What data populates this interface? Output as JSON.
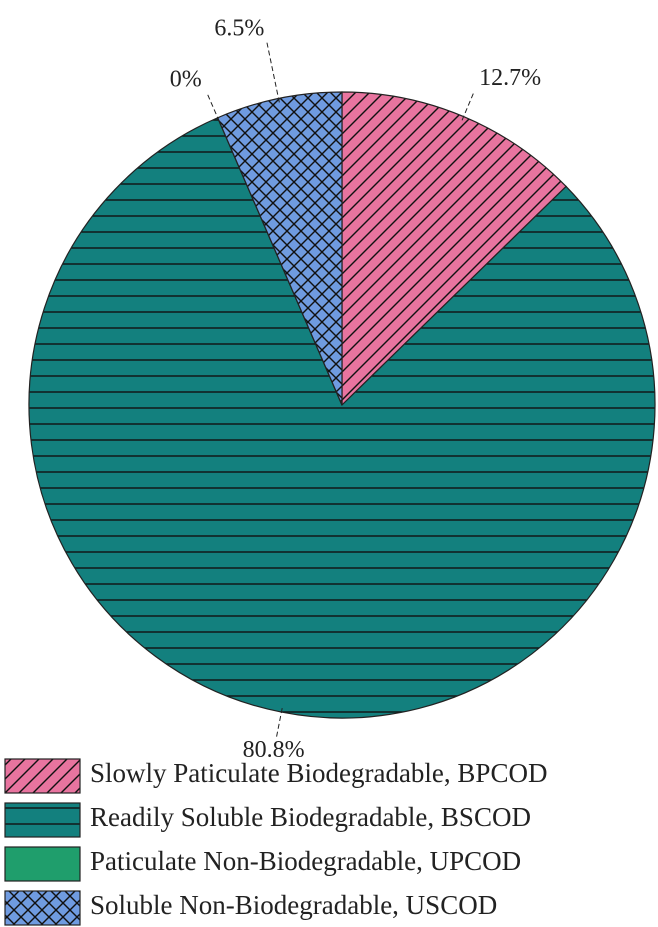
{
  "chart_data": {
    "type": "pie",
    "categories": [
      "Slowly Paticulate Biodegradable, BPCOD",
      "Readily Soluble Biodegradable, BSCOD",
      "Paticulate Non-Biodegradable, UPCOD",
      "Soluble Non-Biodegradable, USCOD"
    ],
    "values": [
      12.7,
      80.8,
      0,
      6.5
    ],
    "value_labels": [
      "12.7%",
      "80.8%",
      "0%",
      "6.5%"
    ],
    "colors": [
      "#e8749f",
      "#13807e",
      "#1f9e6c",
      "#6f9be0"
    ],
    "hatch": [
      "diagonal",
      "horizontal",
      "none",
      "cross"
    ],
    "legend": "bottom"
  }
}
